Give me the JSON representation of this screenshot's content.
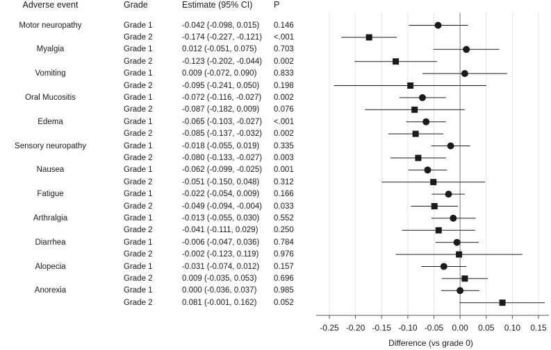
{
  "chart_data": {
    "type": "forest",
    "xlabel": "Difference (vs grade 0)",
    "xlim": [
      -0.27,
      0.17
    ],
    "xticks": [
      -0.25,
      -0.2,
      -0.15,
      -0.1,
      -0.05,
      0,
      0.05,
      0.1,
      0.15
    ],
    "xtick_labels": [
      "-0.25",
      "-0.20",
      "-0.15",
      "-0.10",
      "-0.05",
      "0.00",
      "0.05",
      "0.10",
      "0.15"
    ],
    "reference_line": 0,
    "vertical_gridlines": true,
    "columns": {
      "event": "Adverse event",
      "grade": "Grade",
      "estimate": "Estimate (95% CI)",
      "p": "P"
    },
    "markers": {
      "Grade 1": "circle",
      "Grade 2": "square"
    },
    "rows": [
      {
        "event": "Motor neuropathy",
        "grade": "Grade 1",
        "est": -0.042,
        "lo": -0.098,
        "hi": 0.015,
        "label": "-0.042 (-0.098, 0.015)",
        "p": "0.146"
      },
      {
        "event": "",
        "grade": "Grade 2",
        "est": -0.174,
        "lo": -0.227,
        "hi": -0.121,
        "label": "-0.174 (-0.227, -0.121)",
        "p": "<.001"
      },
      {
        "event": "Myalgia",
        "grade": "Grade 1",
        "est": 0.012,
        "lo": -0.051,
        "hi": 0.075,
        "label": "0.012 (-0.051, 0.075)",
        "p": "0.703"
      },
      {
        "event": "",
        "grade": "Grade 2",
        "est": -0.123,
        "lo": -0.202,
        "hi": -0.044,
        "label": "-0.123 (-0.202, -0.044)",
        "p": "0.002"
      },
      {
        "event": "Vomiting",
        "grade": "Grade 1",
        "est": 0.009,
        "lo": -0.072,
        "hi": 0.09,
        "label": "0.009 (-0.072, 0.090)",
        "p": "0.833"
      },
      {
        "event": "",
        "grade": "Grade 2",
        "est": -0.095,
        "lo": -0.241,
        "hi": 0.05,
        "label": "-0.095 (-0.241, 0.050)",
        "p": "0.198"
      },
      {
        "event": "Oral Mucositis",
        "grade": "Grade 1",
        "est": -0.072,
        "lo": -0.116,
        "hi": -0.027,
        "label": "-0.072 (-0.116, -0.027)",
        "p": "0.002"
      },
      {
        "event": "",
        "grade": "Grade 2",
        "est": -0.087,
        "lo": -0.182,
        "hi": 0.009,
        "label": "-0.087 (-0.182, 0.009)",
        "p": "0.076"
      },
      {
        "event": "Edema",
        "grade": "Grade 1",
        "est": -0.065,
        "lo": -0.103,
        "hi": -0.027,
        "label": "-0.065 (-0.103, -0.027)",
        "p": "<.001"
      },
      {
        "event": "",
        "grade": "Grade 2",
        "est": -0.085,
        "lo": -0.137,
        "hi": -0.032,
        "label": "-0.085 (-0.137, -0.032)",
        "p": "0.002"
      },
      {
        "event": "Sensory neuropathy",
        "grade": "Grade 1",
        "est": -0.018,
        "lo": -0.055,
        "hi": 0.019,
        "label": "-0.018 (-0.055, 0.019)",
        "p": "0.335"
      },
      {
        "event": "",
        "grade": "Grade 2",
        "est": -0.08,
        "lo": -0.133,
        "hi": -0.027,
        "label": "-0.080 (-0.133, -0.027)",
        "p": "0.003"
      },
      {
        "event": "Nausea",
        "grade": "Grade 1",
        "est": -0.062,
        "lo": -0.099,
        "hi": -0.025,
        "label": "-0.062 (-0.099, -0.025)",
        "p": "0.001"
      },
      {
        "event": "",
        "grade": "Grade 2",
        "est": -0.051,
        "lo": -0.15,
        "hi": 0.048,
        "label": "-0.051 (-0.150, 0.048)",
        "p": "0.312"
      },
      {
        "event": "Fatigue",
        "grade": "Grade 1",
        "est": -0.022,
        "lo": -0.054,
        "hi": 0.009,
        "label": "-0.022 (-0.054, 0.009)",
        "p": "0.166"
      },
      {
        "event": "",
        "grade": "Grade 2",
        "est": -0.049,
        "lo": -0.094,
        "hi": -0.004,
        "label": "-0.049 (-0.094, -0.004)",
        "p": "0.033"
      },
      {
        "event": "Arthralgia",
        "grade": "Grade 1",
        "est": -0.013,
        "lo": -0.055,
        "hi": 0.03,
        "label": "-0.013 (-0.055, 0.030)",
        "p": "0.552"
      },
      {
        "event": "",
        "grade": "Grade 2",
        "est": -0.041,
        "lo": -0.111,
        "hi": 0.029,
        "label": "-0.041 (-0.111, 0.029)",
        "p": "0.250"
      },
      {
        "event": "Diarrhea",
        "grade": "Grade 1",
        "est": -0.006,
        "lo": -0.047,
        "hi": 0.036,
        "label": "-0.006 (-0.047, 0.036)",
        "p": "0.784"
      },
      {
        "event": "",
        "grade": "Grade 2",
        "est": -0.002,
        "lo": -0.123,
        "hi": 0.119,
        "label": "-0.002 (-0.123, 0.119)",
        "p": "0.976"
      },
      {
        "event": "Alopecia",
        "grade": "Grade 1",
        "est": -0.031,
        "lo": -0.074,
        "hi": 0.012,
        "label": "-0.031 (-0.074, 0.012)",
        "p": "0.157"
      },
      {
        "event": "",
        "grade": "Grade 2",
        "est": 0.009,
        "lo": -0.035,
        "hi": 0.053,
        "label": "0.009 (-0.035, 0.053)",
        "p": "0.696"
      },
      {
        "event": "Anorexia",
        "grade": "Grade 1",
        "est": 0.0,
        "lo": -0.036,
        "hi": 0.037,
        "label": "0.000 (-0.036, 0.037)",
        "p": "0.985"
      },
      {
        "event": "",
        "grade": "Grade 2",
        "est": 0.081,
        "lo": -0.001,
        "hi": 0.162,
        "label": "0.081 (-0.001, 0.162)",
        "p": "0.052"
      }
    ]
  },
  "colors": {
    "ink": "#1a1a1a",
    "grid": "#e4e4e4",
    "axis": "#555555",
    "background": "#ffffff"
  }
}
